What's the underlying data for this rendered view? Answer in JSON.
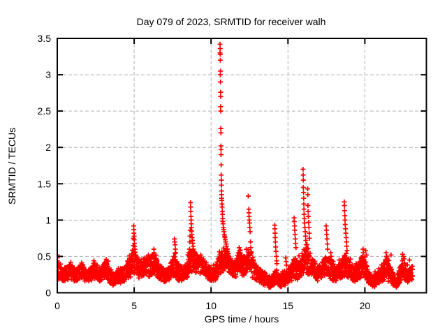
{
  "chart_data": {
    "type": "scatter",
    "title": "Day 079 of 2023, SRMTID for receiver walh",
    "xlabel": "GPS time / hours",
    "ylabel": "SRMTID / TECUs",
    "xlim": [
      0,
      24
    ],
    "ylim": [
      0,
      3.5
    ],
    "xticks": [
      0,
      5,
      10,
      15,
      20
    ],
    "yticks": [
      0,
      0.5,
      1,
      1.5,
      2,
      2.5,
      3,
      3.5
    ],
    "grid": {
      "show": true,
      "color": "#b0b0b0",
      "dash": "5,3"
    },
    "border_color": "#000000",
    "background": "#ffffff",
    "legend": "none",
    "marker": {
      "shape": "plus",
      "color": "#ff0000",
      "size": 7,
      "stroke_width": 1.7
    },
    "series": [
      {
        "name": "SRMTID",
        "feature_points": [
          [
            0.0,
            0.52
          ],
          [
            0.0,
            0.48
          ],
          [
            0.01,
            0.44
          ],
          [
            0.02,
            0.4
          ],
          [
            0.88,
            0.42
          ],
          [
            1.58,
            0.41
          ],
          [
            2.38,
            0.44
          ],
          [
            2.42,
            0.41
          ],
          [
            3.18,
            0.46
          ],
          [
            3.22,
            0.43
          ],
          [
            4.58,
            0.44
          ],
          [
            4.62,
            0.4
          ],
          [
            4.94,
            0.65
          ],
          [
            4.95,
            0.75
          ],
          [
            4.97,
            0.92
          ],
          [
            4.98,
            0.87
          ],
          [
            4.98,
            0.82
          ],
          [
            5.0,
            0.78
          ],
          [
            5.0,
            0.73
          ],
          [
            5.02,
            0.68
          ],
          [
            5.03,
            0.64
          ],
          [
            5.05,
            0.6
          ],
          [
            5.07,
            0.56
          ],
          [
            5.09,
            0.52
          ],
          [
            5.92,
            0.52
          ],
          [
            5.95,
            0.48
          ],
          [
            6.28,
            0.6
          ],
          [
            6.3,
            0.55
          ],
          [
            6.32,
            0.5
          ],
          [
            7.62,
            0.74
          ],
          [
            7.64,
            0.7
          ],
          [
            7.66,
            0.66
          ],
          [
            7.68,
            0.6
          ],
          [
            7.7,
            0.55
          ],
          [
            8.6,
            0.6
          ],
          [
            8.62,
            0.7
          ],
          [
            8.63,
            0.78
          ],
          [
            8.64,
            0.86
          ],
          [
            8.66,
            1.24
          ],
          [
            8.67,
            1.18
          ],
          [
            8.68,
            1.12
          ],
          [
            8.69,
            1.05
          ],
          [
            8.7,
            1.0
          ],
          [
            8.71,
            0.95
          ],
          [
            8.72,
            0.9
          ],
          [
            8.74,
            0.85
          ],
          [
            8.75,
            0.8
          ],
          [
            8.77,
            0.76
          ],
          [
            8.79,
            0.72
          ],
          [
            8.81,
            0.68
          ],
          [
            8.83,
            0.64
          ],
          [
            8.85,
            0.6
          ],
          [
            8.87,
            0.56
          ],
          [
            8.89,
            0.52
          ],
          [
            9.1,
            0.52
          ],
          [
            9.12,
            0.48
          ],
          [
            9.33,
            0.52
          ],
          [
            9.36,
            0.49
          ],
          [
            10.58,
            3.42
          ],
          [
            10.58,
            3.3
          ],
          [
            10.59,
            3.36
          ],
          [
            10.6,
            3.28
          ],
          [
            10.6,
            3.2
          ],
          [
            10.6,
            3.0
          ],
          [
            10.61,
            3.05
          ],
          [
            10.61,
            2.9
          ],
          [
            10.62,
            2.76
          ],
          [
            10.62,
            2.7
          ],
          [
            10.62,
            2.56
          ],
          [
            10.63,
            2.5
          ],
          [
            10.63,
            2.26
          ],
          [
            10.64,
            2.2
          ],
          [
            10.64,
            2.02
          ],
          [
            10.65,
            1.97
          ],
          [
            10.65,
            1.9
          ],
          [
            10.66,
            1.76
          ],
          [
            10.66,
            1.62
          ],
          [
            10.67,
            1.55
          ],
          [
            10.67,
            1.48
          ],
          [
            10.68,
            1.4
          ],
          [
            10.68,
            1.35
          ],
          [
            10.69,
            1.3
          ],
          [
            10.7,
            1.27
          ],
          [
            10.71,
            1.22
          ],
          [
            10.72,
            1.18
          ],
          [
            10.73,
            1.12
          ],
          [
            10.74,
            1.08
          ],
          [
            10.75,
            1.02
          ],
          [
            10.76,
            0.98
          ],
          [
            10.78,
            0.95
          ],
          [
            10.8,
            0.9
          ],
          [
            10.82,
            0.87
          ],
          [
            10.84,
            0.84
          ],
          [
            10.86,
            0.8
          ],
          [
            10.88,
            0.78
          ],
          [
            10.9,
            0.76
          ],
          [
            10.92,
            0.73
          ],
          [
            10.95,
            0.7
          ],
          [
            10.98,
            0.67
          ],
          [
            11.0,
            0.64
          ],
          [
            11.03,
            0.6
          ],
          [
            11.06,
            0.57
          ],
          [
            11.1,
            0.54
          ],
          [
            11.14,
            0.5
          ],
          [
            11.83,
            0.62
          ],
          [
            11.86,
            0.58
          ],
          [
            11.9,
            0.54
          ],
          [
            12.13,
            0.5
          ],
          [
            12.42,
            1.33
          ],
          [
            12.45,
            1.15
          ],
          [
            12.46,
            1.1
          ],
          [
            12.47,
            1.05
          ],
          [
            12.48,
            1.0
          ],
          [
            12.5,
            0.96
          ],
          [
            12.52,
            0.9
          ],
          [
            12.54,
            0.84
          ],
          [
            12.56,
            0.7
          ],
          [
            12.58,
            0.62
          ],
          [
            12.6,
            0.55
          ],
          [
            14.14,
            0.93
          ],
          [
            14.15,
            0.88
          ],
          [
            14.16,
            0.82
          ],
          [
            14.17,
            0.76
          ],
          [
            14.18,
            0.7
          ],
          [
            14.2,
            0.63
          ],
          [
            14.22,
            0.57
          ],
          [
            14.24,
            0.5
          ],
          [
            14.26,
            0.44
          ],
          [
            14.28,
            0.4
          ],
          [
            14.85,
            0.48
          ],
          [
            14.88,
            0.43
          ],
          [
            14.9,
            0.38
          ],
          [
            15.4,
            1.03
          ],
          [
            15.41,
            0.98
          ],
          [
            15.43,
            0.92
          ],
          [
            15.44,
            0.86
          ],
          [
            15.46,
            0.8
          ],
          [
            15.48,
            0.74
          ],
          [
            15.5,
            0.68
          ],
          [
            15.52,
            0.62
          ],
          [
            15.98,
            1.7
          ],
          [
            15.99,
            1.62
          ],
          [
            16.0,
            1.55
          ],
          [
            16.0,
            1.45
          ],
          [
            16.01,
            1.38
          ],
          [
            16.02,
            1.3
          ],
          [
            16.03,
            1.22
          ],
          [
            16.04,
            1.15
          ],
          [
            16.05,
            1.08
          ],
          [
            16.06,
            1.02
          ],
          [
            16.08,
            0.96
          ],
          [
            16.1,
            0.9
          ],
          [
            16.12,
            0.84
          ],
          [
            16.14,
            0.78
          ],
          [
            16.16,
            0.72
          ],
          [
            16.18,
            0.66
          ],
          [
            16.2,
            0.6
          ],
          [
            16.28,
            1.43
          ],
          [
            16.29,
            1.35
          ],
          [
            16.3,
            1.2
          ],
          [
            16.31,
            1.12
          ],
          [
            16.32,
            1.05
          ],
          [
            16.34,
            0.97
          ],
          [
            16.36,
            0.9
          ],
          [
            16.38,
            0.82
          ],
          [
            16.4,
            0.75
          ],
          [
            17.48,
            0.92
          ],
          [
            17.5,
            0.86
          ],
          [
            17.52,
            0.8
          ],
          [
            17.54,
            0.74
          ],
          [
            17.56,
            0.67
          ],
          [
            17.58,
            0.6
          ],
          [
            17.78,
            0.55
          ],
          [
            17.8,
            0.5
          ],
          [
            18.33,
            0.45
          ],
          [
            18.66,
            1.25
          ],
          [
            18.67,
            1.2
          ],
          [
            18.68,
            1.13
          ],
          [
            18.7,
            1.06
          ],
          [
            18.71,
            1.0
          ],
          [
            18.72,
            0.94
          ],
          [
            18.74,
            0.88
          ],
          [
            18.76,
            0.82
          ],
          [
            18.78,
            0.76
          ],
          [
            18.8,
            0.7
          ],
          [
            18.82,
            0.64
          ],
          [
            18.84,
            0.58
          ],
          [
            19.43,
            0.4
          ],
          [
            19.88,
            0.6
          ],
          [
            19.9,
            0.55
          ],
          [
            20.05,
            0.58
          ],
          [
            20.1,
            0.52
          ],
          [
            20.9,
            0.33
          ],
          [
            21.38,
            0.55
          ],
          [
            21.42,
            0.5
          ],
          [
            21.7,
            0.52
          ],
          [
            22.45,
            0.53
          ],
          [
            22.5,
            0.5
          ],
          [
            22.55,
            0.47
          ],
          [
            22.9,
            0.45
          ]
        ],
        "band_profile": [
          [
            0.0,
            0.18,
            0.42
          ],
          [
            0.4,
            0.15,
            0.32
          ],
          [
            0.8,
            0.18,
            0.38
          ],
          [
            1.2,
            0.15,
            0.32
          ],
          [
            1.6,
            0.18,
            0.4
          ],
          [
            2.0,
            0.13,
            0.3
          ],
          [
            2.4,
            0.18,
            0.42
          ],
          [
            2.8,
            0.15,
            0.35
          ],
          [
            3.2,
            0.18,
            0.44
          ],
          [
            3.6,
            0.1,
            0.26
          ],
          [
            4.0,
            0.12,
            0.3
          ],
          [
            4.4,
            0.15,
            0.36
          ],
          [
            4.8,
            0.22,
            0.52
          ],
          [
            5.0,
            0.25,
            0.58
          ],
          [
            5.3,
            0.2,
            0.45
          ],
          [
            5.6,
            0.22,
            0.48
          ],
          [
            6.0,
            0.22,
            0.5
          ],
          [
            6.3,
            0.25,
            0.55
          ],
          [
            6.6,
            0.18,
            0.4
          ],
          [
            7.0,
            0.13,
            0.3
          ],
          [
            7.3,
            0.15,
            0.38
          ],
          [
            7.6,
            0.22,
            0.52
          ],
          [
            7.9,
            0.16,
            0.38
          ],
          [
            8.2,
            0.15,
            0.36
          ],
          [
            8.5,
            0.22,
            0.5
          ],
          [
            8.8,
            0.28,
            0.6
          ],
          [
            9.1,
            0.25,
            0.52
          ],
          [
            9.4,
            0.25,
            0.5
          ],
          [
            9.7,
            0.2,
            0.42
          ],
          [
            10.0,
            0.15,
            0.35
          ],
          [
            10.3,
            0.15,
            0.38
          ],
          [
            10.6,
            0.25,
            0.55
          ],
          [
            10.9,
            0.3,
            0.65
          ],
          [
            11.2,
            0.25,
            0.5
          ],
          [
            11.5,
            0.2,
            0.45
          ],
          [
            11.8,
            0.25,
            0.58
          ],
          [
            12.1,
            0.22,
            0.48
          ],
          [
            12.4,
            0.25,
            0.6
          ],
          [
            12.7,
            0.2,
            0.5
          ],
          [
            13.0,
            0.15,
            0.38
          ],
          [
            13.3,
            0.12,
            0.3
          ],
          [
            13.6,
            0.08,
            0.24
          ],
          [
            13.9,
            0.07,
            0.2
          ],
          [
            14.2,
            0.1,
            0.3
          ],
          [
            14.5,
            0.08,
            0.22
          ],
          [
            14.8,
            0.1,
            0.28
          ],
          [
            15.1,
            0.14,
            0.35
          ],
          [
            15.4,
            0.18,
            0.48
          ],
          [
            15.7,
            0.18,
            0.45
          ],
          [
            16.0,
            0.25,
            0.6
          ],
          [
            16.3,
            0.25,
            0.62
          ],
          [
            16.6,
            0.2,
            0.48
          ],
          [
            16.9,
            0.15,
            0.38
          ],
          [
            17.2,
            0.18,
            0.42
          ],
          [
            17.5,
            0.22,
            0.52
          ],
          [
            17.8,
            0.18,
            0.45
          ],
          [
            18.1,
            0.14,
            0.35
          ],
          [
            18.4,
            0.18,
            0.42
          ],
          [
            18.7,
            0.22,
            0.52
          ],
          [
            19.0,
            0.18,
            0.45
          ],
          [
            19.3,
            0.14,
            0.35
          ],
          [
            19.6,
            0.18,
            0.42
          ],
          [
            19.9,
            0.22,
            0.52
          ],
          [
            20.2,
            0.12,
            0.35
          ],
          [
            20.5,
            0.07,
            0.22
          ],
          [
            20.8,
            0.1,
            0.28
          ],
          [
            21.1,
            0.14,
            0.35
          ],
          [
            21.4,
            0.18,
            0.48
          ],
          [
            21.7,
            0.12,
            0.35
          ],
          [
            22.0,
            0.05,
            0.2
          ],
          [
            22.2,
            0.1,
            0.3
          ],
          [
            22.5,
            0.18,
            0.48
          ],
          [
            22.8,
            0.14,
            0.35
          ],
          [
            23.1,
            0.18,
            0.38
          ]
        ],
        "synthesis": {
          "cadence": 0.02,
          "points_per_epoch": 2,
          "t_end": 23.1,
          "seed": 79
        }
      }
    ]
  }
}
